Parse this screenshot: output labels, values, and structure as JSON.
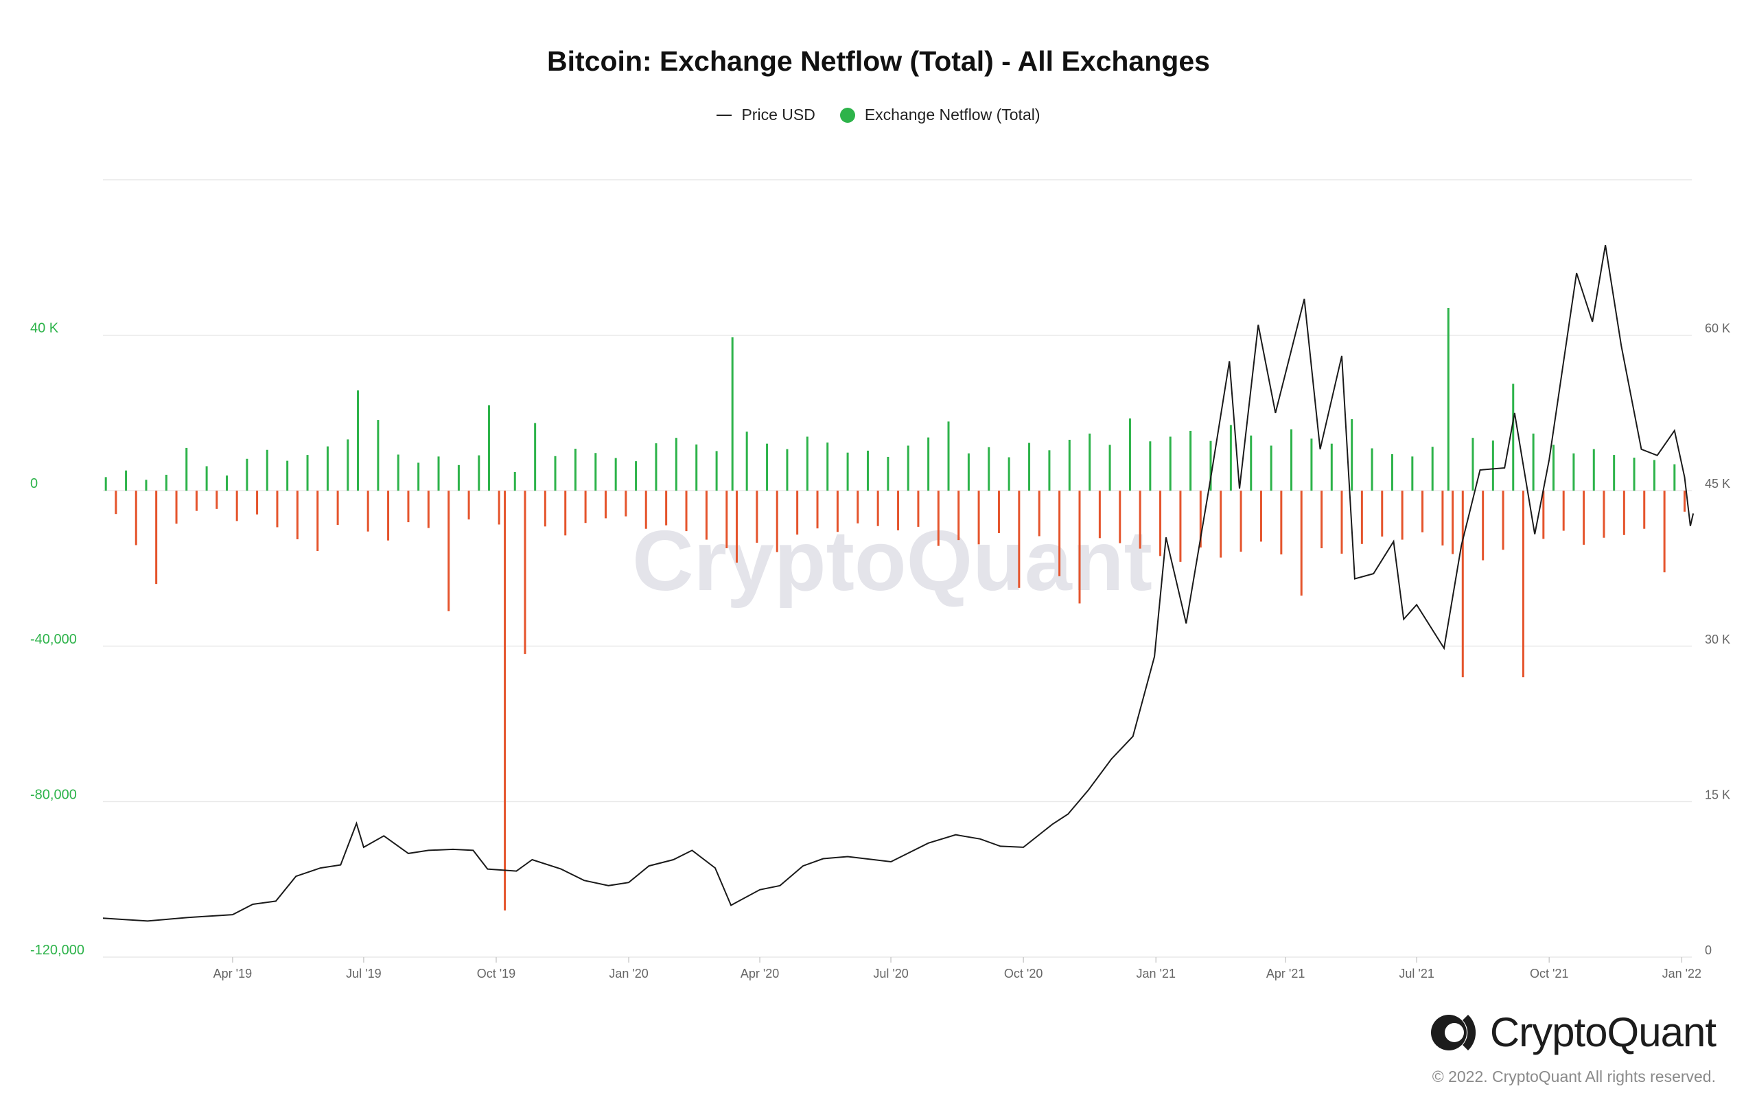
{
  "colors": {
    "positive": "#2db34a",
    "negative": "#e5542c",
    "price_line": "#1a1a1a",
    "grid": "#e8e8e8",
    "left_axis": "#2db34a",
    "right_axis": "#666666",
    "watermark": "#e4e4ea"
  },
  "brand": {
    "watermark": "CryptoQuant",
    "name": "CryptoQuant",
    "logo_icon": "cryptoquant-logo-icon",
    "copyright": "© 2022. CryptoQuant All rights reserved."
  },
  "chart_data": {
    "type": "bar",
    "title": "Bitcoin: Exchange Netflow (Total) - All Exchanges",
    "legend_position": "top-center",
    "grid": true,
    "x_range": [
      "2019-01-01",
      "2022-01-08"
    ],
    "x_ticks": [
      {
        "date": "2019-04-01",
        "label": "Apr '19"
      },
      {
        "date": "2019-07-01",
        "label": "Jul '19"
      },
      {
        "date": "2019-10-01",
        "label": "Oct '19"
      },
      {
        "date": "2020-01-01",
        "label": "Jan '20"
      },
      {
        "date": "2020-04-01",
        "label": "Apr '20"
      },
      {
        "date": "2020-07-01",
        "label": "Jul '20"
      },
      {
        "date": "2020-10-01",
        "label": "Oct '20"
      },
      {
        "date": "2021-01-01",
        "label": "Jan '21"
      },
      {
        "date": "2021-04-01",
        "label": "Apr '21"
      },
      {
        "date": "2021-07-01",
        "label": "Jul '21"
      },
      {
        "date": "2021-10-01",
        "label": "Oct '21"
      },
      {
        "date": "2022-01-01",
        "label": "Jan '22"
      }
    ],
    "left_axis": {
      "ylim": [
        -120000,
        80000
      ],
      "ticks": [
        {
          "value": 40000,
          "label": "40 K"
        },
        {
          "value": 0,
          "label": "0"
        },
        {
          "value": -40000,
          "label": "-40,000"
        },
        {
          "value": -80000,
          "label": "-80,000"
        },
        {
          "value": -120000,
          "label": "-120,000"
        }
      ]
    },
    "right_axis": {
      "ylim": [
        0,
        75000
      ],
      "ticks": [
        {
          "value": 60000,
          "label": "60 K"
        },
        {
          "value": 45000,
          "label": "45 K"
        },
        {
          "value": 30000,
          "label": "30 K"
        },
        {
          "value": 15000,
          "label": "15 K"
        },
        {
          "value": 0,
          "label": "0"
        }
      ]
    },
    "series": [
      {
        "name": "Exchange Netflow (Total)",
        "axis": "left",
        "kind": "bar",
        "points": [
          [
            "2019-01-03",
            3500
          ],
          [
            "2019-01-10",
            -6000
          ],
          [
            "2019-01-17",
            5200
          ],
          [
            "2019-01-24",
            -14000
          ],
          [
            "2019-01-31",
            2800
          ],
          [
            "2019-02-07",
            -24000
          ],
          [
            "2019-02-14",
            4100
          ],
          [
            "2019-02-21",
            -8500
          ],
          [
            "2019-02-28",
            11000
          ],
          [
            "2019-03-07",
            -5200
          ],
          [
            "2019-03-14",
            6300
          ],
          [
            "2019-03-21",
            -4700
          ],
          [
            "2019-03-28",
            3900
          ],
          [
            "2019-04-04",
            -7800
          ],
          [
            "2019-04-11",
            8200
          ],
          [
            "2019-04-18",
            -6100
          ],
          [
            "2019-04-25",
            10500
          ],
          [
            "2019-05-02",
            -9400
          ],
          [
            "2019-05-09",
            7700
          ],
          [
            "2019-05-16",
            -12500
          ],
          [
            "2019-05-23",
            9200
          ],
          [
            "2019-05-30",
            -15500
          ],
          [
            "2019-06-06",
            11400
          ],
          [
            "2019-06-13",
            -8800
          ],
          [
            "2019-06-20",
            13200
          ],
          [
            "2019-06-27",
            25800
          ],
          [
            "2019-07-04",
            -10500
          ],
          [
            "2019-07-11",
            18200
          ],
          [
            "2019-07-18",
            -12800
          ],
          [
            "2019-07-25",
            9300
          ],
          [
            "2019-08-01",
            -8100
          ],
          [
            "2019-08-08",
            7200
          ],
          [
            "2019-08-15",
            -9600
          ],
          [
            "2019-08-22",
            8800
          ],
          [
            "2019-08-29",
            -31000
          ],
          [
            "2019-09-05",
            6600
          ],
          [
            "2019-09-12",
            -7400
          ],
          [
            "2019-09-19",
            9100
          ],
          [
            "2019-09-26",
            22000
          ],
          [
            "2019-10-03",
            -8700
          ],
          [
            "2019-10-07",
            -108000
          ],
          [
            "2019-10-14",
            4800
          ],
          [
            "2019-10-21",
            -42000
          ],
          [
            "2019-10-28",
            17400
          ],
          [
            "2019-11-04",
            -9200
          ],
          [
            "2019-11-11",
            8900
          ],
          [
            "2019-11-18",
            -11500
          ],
          [
            "2019-11-25",
            10800
          ],
          [
            "2019-12-02",
            -8300
          ],
          [
            "2019-12-09",
            9700
          ],
          [
            "2019-12-16",
            -7100
          ],
          [
            "2019-12-23",
            8400
          ],
          [
            "2019-12-30",
            -6600
          ],
          [
            "2020-01-06",
            7600
          ],
          [
            "2020-01-13",
            -9800
          ],
          [
            "2020-01-20",
            12200
          ],
          [
            "2020-01-27",
            -8900
          ],
          [
            "2020-02-03",
            13600
          ],
          [
            "2020-02-10",
            -10400
          ],
          [
            "2020-02-17",
            11900
          ],
          [
            "2020-02-24",
            -12600
          ],
          [
            "2020-03-02",
            10200
          ],
          [
            "2020-03-09",
            -14800
          ],
          [
            "2020-03-13",
            39500
          ],
          [
            "2020-03-16",
            -18500
          ],
          [
            "2020-03-23",
            15200
          ],
          [
            "2020-03-30",
            -13400
          ],
          [
            "2020-04-06",
            12100
          ],
          [
            "2020-04-13",
            -15800
          ],
          [
            "2020-04-20",
            10700
          ],
          [
            "2020-04-27",
            -11300
          ],
          [
            "2020-05-04",
            13900
          ],
          [
            "2020-05-11",
            -9700
          ],
          [
            "2020-05-18",
            12400
          ],
          [
            "2020-05-25",
            -10600
          ],
          [
            "2020-06-01",
            9800
          ],
          [
            "2020-06-08",
            -8400
          ],
          [
            "2020-06-15",
            10300
          ],
          [
            "2020-06-22",
            -9100
          ],
          [
            "2020-06-29",
            8700
          ],
          [
            "2020-07-06",
            -10200
          ],
          [
            "2020-07-13",
            11600
          ],
          [
            "2020-07-20",
            -9300
          ],
          [
            "2020-07-27",
            13700
          ],
          [
            "2020-08-03",
            -14200
          ],
          [
            "2020-08-10",
            17800
          ],
          [
            "2020-08-17",
            -12700
          ],
          [
            "2020-08-24",
            9600
          ],
          [
            "2020-08-31",
            -13800
          ],
          [
            "2020-09-07",
            11200
          ],
          [
            "2020-09-14",
            -10900
          ],
          [
            "2020-09-21",
            8600
          ],
          [
            "2020-09-28",
            -25000
          ],
          [
            "2020-10-05",
            12300
          ],
          [
            "2020-10-12",
            -11700
          ],
          [
            "2020-10-19",
            10400
          ],
          [
            "2020-10-26",
            -22000
          ],
          [
            "2020-11-02",
            13100
          ],
          [
            "2020-11-09",
            -29000
          ],
          [
            "2020-11-16",
            14700
          ],
          [
            "2020-11-23",
            -12200
          ],
          [
            "2020-11-30",
            11800
          ],
          [
            "2020-12-07",
            -13500
          ],
          [
            "2020-12-14",
            18600
          ],
          [
            "2020-12-21",
            -14900
          ],
          [
            "2020-12-28",
            12700
          ],
          [
            "2021-01-04",
            -16800
          ],
          [
            "2021-01-11",
            13900
          ],
          [
            "2021-01-18",
            -18300
          ],
          [
            "2021-01-25",
            15400
          ],
          [
            "2021-02-01",
            -14600
          ],
          [
            "2021-02-08",
            12800
          ],
          [
            "2021-02-15",
            -17200
          ],
          [
            "2021-02-22",
            16900
          ],
          [
            "2021-03-01",
            -15700
          ],
          [
            "2021-03-08",
            14200
          ],
          [
            "2021-03-15",
            -13100
          ],
          [
            "2021-03-22",
            11600
          ],
          [
            "2021-03-29",
            -16400
          ],
          [
            "2021-04-05",
            15800
          ],
          [
            "2021-04-12",
            -27000
          ],
          [
            "2021-04-19",
            13400
          ],
          [
            "2021-04-26",
            -14800
          ],
          [
            "2021-05-03",
            12100
          ],
          [
            "2021-05-10",
            -16200
          ],
          [
            "2021-05-17",
            18400
          ],
          [
            "2021-05-24",
            -13700
          ],
          [
            "2021-05-31",
            10900
          ],
          [
            "2021-06-07",
            -11800
          ],
          [
            "2021-06-14",
            9400
          ],
          [
            "2021-06-21",
            -12600
          ],
          [
            "2021-06-28",
            8800
          ],
          [
            "2021-07-05",
            -10700
          ],
          [
            "2021-07-12",
            11300
          ],
          [
            "2021-07-19",
            -14100
          ],
          [
            "2021-07-23",
            47000
          ],
          [
            "2021-07-26",
            -16300
          ],
          [
            "2021-08-02",
            -48000
          ],
          [
            "2021-08-09",
            13600
          ],
          [
            "2021-08-16",
            -17900
          ],
          [
            "2021-08-23",
            12900
          ],
          [
            "2021-08-30",
            -15200
          ],
          [
            "2021-09-06",
            27500
          ],
          [
            "2021-09-13",
            -48000
          ],
          [
            "2021-09-20",
            14700
          ],
          [
            "2021-09-27",
            -12400
          ],
          [
            "2021-10-04",
            11800
          ],
          [
            "2021-10-11",
            -10300
          ],
          [
            "2021-10-18",
            9600
          ],
          [
            "2021-10-25",
            -13900
          ],
          [
            "2021-11-01",
            10700
          ],
          [
            "2021-11-08",
            -12100
          ],
          [
            "2021-11-15",
            9200
          ],
          [
            "2021-11-22",
            -11400
          ],
          [
            "2021-11-29",
            8500
          ],
          [
            "2021-12-06",
            -9800
          ],
          [
            "2021-12-13",
            7900
          ],
          [
            "2021-12-20",
            -21000
          ],
          [
            "2021-12-27",
            6800
          ],
          [
            "2022-01-03",
            -5400
          ]
        ]
      },
      {
        "name": "Price USD",
        "axis": "right",
        "kind": "line",
        "points": [
          [
            "2019-01-01",
            3750
          ],
          [
            "2019-02-01",
            3480
          ],
          [
            "2019-03-01",
            3820
          ],
          [
            "2019-04-01",
            4100
          ],
          [
            "2019-04-15",
            5100
          ],
          [
            "2019-05-01",
            5400
          ],
          [
            "2019-05-15",
            7800
          ],
          [
            "2019-06-01",
            8600
          ],
          [
            "2019-06-15",
            8900
          ],
          [
            "2019-06-26",
            12900
          ],
          [
            "2019-07-01",
            10600
          ],
          [
            "2019-07-15",
            11700
          ],
          [
            "2019-08-01",
            10000
          ],
          [
            "2019-08-15",
            10300
          ],
          [
            "2019-09-01",
            10400
          ],
          [
            "2019-09-15",
            10300
          ],
          [
            "2019-09-25",
            8500
          ],
          [
            "2019-10-15",
            8300
          ],
          [
            "2019-10-26",
            9400
          ],
          [
            "2019-11-15",
            8500
          ],
          [
            "2019-12-01",
            7400
          ],
          [
            "2019-12-18",
            6900
          ],
          [
            "2020-01-01",
            7200
          ],
          [
            "2020-01-15",
            8800
          ],
          [
            "2020-02-01",
            9400
          ],
          [
            "2020-02-14",
            10300
          ],
          [
            "2020-03-01",
            8600
          ],
          [
            "2020-03-12",
            5000
          ],
          [
            "2020-03-16",
            5300
          ],
          [
            "2020-04-01",
            6500
          ],
          [
            "2020-04-15",
            6900
          ],
          [
            "2020-05-01",
            8800
          ],
          [
            "2020-05-15",
            9500
          ],
          [
            "2020-06-01",
            9700
          ],
          [
            "2020-07-01",
            9200
          ],
          [
            "2020-07-27",
            11000
          ],
          [
            "2020-08-15",
            11800
          ],
          [
            "2020-09-01",
            11400
          ],
          [
            "2020-09-15",
            10700
          ],
          [
            "2020-10-01",
            10600
          ],
          [
            "2020-10-21",
            12800
          ],
          [
            "2020-11-01",
            13800
          ],
          [
            "2020-11-15",
            16100
          ],
          [
            "2020-12-01",
            19100
          ],
          [
            "2020-12-16",
            21300
          ],
          [
            "2020-12-31",
            29000
          ],
          [
            "2021-01-08",
            40500
          ],
          [
            "2021-01-22",
            32200
          ],
          [
            "2021-02-08",
            46200
          ],
          [
            "2021-02-21",
            57500
          ],
          [
            "2021-02-28",
            45200
          ],
          [
            "2021-03-13",
            61000
          ],
          [
            "2021-03-25",
            52500
          ],
          [
            "2021-04-14",
            63500
          ],
          [
            "2021-04-25",
            49000
          ],
          [
            "2021-05-10",
            58000
          ],
          [
            "2021-05-19",
            36500
          ],
          [
            "2021-06-01",
            37000
          ],
          [
            "2021-06-15",
            40100
          ],
          [
            "2021-06-22",
            32600
          ],
          [
            "2021-07-01",
            34000
          ],
          [
            "2021-07-20",
            29800
          ],
          [
            "2021-08-01",
            39700
          ],
          [
            "2021-08-14",
            47000
          ],
          [
            "2021-08-31",
            47200
          ],
          [
            "2021-09-07",
            52500
          ],
          [
            "2021-09-21",
            40800
          ],
          [
            "2021-10-01",
            48000
          ],
          [
            "2021-10-20",
            66000
          ],
          [
            "2021-10-31",
            61300
          ],
          [
            "2021-11-09",
            68700
          ],
          [
            "2021-11-20",
            59000
          ],
          [
            "2021-12-04",
            49000
          ],
          [
            "2021-12-15",
            48400
          ],
          [
            "2021-12-27",
            50800
          ],
          [
            "2022-01-03",
            46300
          ],
          [
            "2022-01-07",
            41600
          ],
          [
            "2022-01-09",
            42800
          ]
        ]
      }
    ]
  }
}
